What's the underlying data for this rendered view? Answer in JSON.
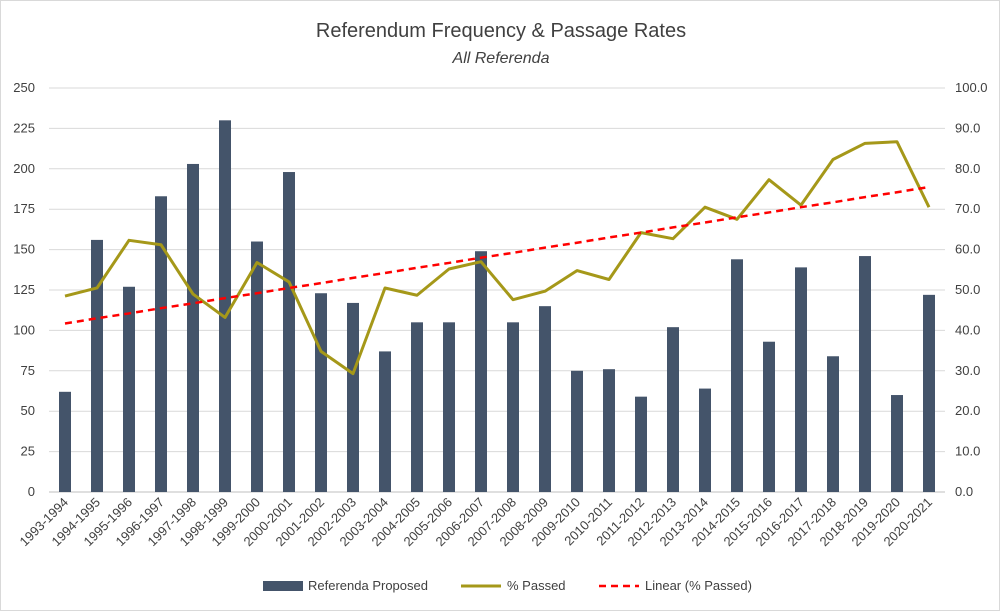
{
  "chart_data": {
    "type": "bar",
    "title": "Referendum Frequency & Passage Rates",
    "subtitle": "All Referenda",
    "categories": [
      "1993-1994",
      "1994-1995",
      "1995-1996",
      "1996-1997",
      "1997-1998",
      "1998-1999",
      "1999-2000",
      "2000-2001",
      "2001-2002",
      "2002-2003",
      "2003-2004",
      "2004-2005",
      "2005-2006",
      "2006-2007",
      "2007-2008",
      "2008-2009",
      "2009-2010",
      "2010-2011",
      "2011-2012",
      "2012-2013",
      "2013-2014",
      "2014-2015",
      "2015-2016",
      "2016-2017",
      "2017-2018",
      "2018-2019",
      "2019-2020",
      "2020-2021"
    ],
    "series": [
      {
        "name": "Referenda Proposed",
        "type": "bar",
        "axis": "left",
        "color": "#44546a",
        "values": [
          62,
          156,
          127,
          183,
          203,
          230,
          155,
          198,
          123,
          117,
          87,
          105,
          105,
          149,
          105,
          115,
          75,
          76,
          59,
          102,
          64,
          144,
          93,
          139,
          84,
          146,
          60,
          122
        ]
      },
      {
        "name": "% Passed",
        "type": "line",
        "axis": "right",
        "color": "#a59819",
        "values": [
          48.5,
          50.5,
          62.3,
          61.2,
          49.0,
          43.2,
          56.8,
          52.0,
          34.8,
          29.3,
          50.5,
          48.7,
          55.2,
          57.0,
          47.6,
          49.7,
          54.8,
          52.6,
          64.2,
          62.7,
          70.5,
          67.5,
          77.3,
          71.0,
          82.3,
          86.3,
          86.7,
          70.5
        ]
      },
      {
        "name": "Linear (% Passed)",
        "type": "trendline",
        "axis": "right",
        "color": "#ff0000",
        "values": [
          41.7,
          43.0,
          44.2,
          45.5,
          46.7,
          48.0,
          49.2,
          50.5,
          51.7,
          53.0,
          54.2,
          55.5,
          56.7,
          58.0,
          59.2,
          60.5,
          61.7,
          63.0,
          64.2,
          65.5,
          66.7,
          68.0,
          69.2,
          70.5,
          71.7,
          73.0,
          74.2,
          75.5
        ]
      }
    ],
    "y_left": {
      "min": 0,
      "max": 250,
      "ticks": [
        "0",
        "25",
        "50",
        "75",
        "100",
        "125",
        "150",
        "175",
        "200",
        "225",
        "250"
      ]
    },
    "y_right": {
      "min": 0,
      "max": 100,
      "ticks": [
        "0.0",
        "10.0",
        "20.0",
        "30.0",
        "40.0",
        "50.0",
        "60.0",
        "70.0",
        "80.0",
        "90.0",
        "100.0"
      ]
    },
    "grid": true,
    "legend_position": "bottom"
  }
}
